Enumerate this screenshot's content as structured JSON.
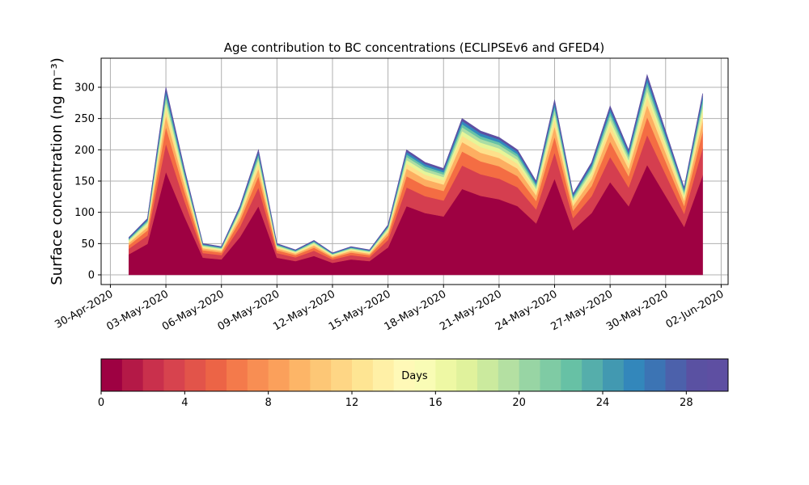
{
  "chart_data": {
    "type": "stacked-area",
    "title": "Age contribution to BC concentrations (ECLIPSEv6 and GFED4)",
    "y_label": "Surface concentration (ng m⁻³)",
    "grid": true,
    "x": [
      "2020-05-01",
      "2020-05-02",
      "2020-05-03",
      "2020-05-04",
      "2020-05-05",
      "2020-05-06",
      "2020-05-07",
      "2020-05-08",
      "2020-05-09",
      "2020-05-10",
      "2020-05-11",
      "2020-05-12",
      "2020-05-13",
      "2020-05-14",
      "2020-05-15",
      "2020-05-16",
      "2020-05-17",
      "2020-05-18",
      "2020-05-19",
      "2020-05-20",
      "2020-05-21",
      "2020-05-22",
      "2020-05-23",
      "2020-05-24",
      "2020-05-25",
      "2020-05-26",
      "2020-05-27",
      "2020-05-28",
      "2020-05-29",
      "2020-05-30",
      "2020-05-31",
      "2020-06-01"
    ],
    "xlim": [
      "2020-04-29T12:00",
      "2020-06-02T09:00"
    ],
    "xticks": [
      {
        "value": "2020-04-30",
        "label": "30-Apr-2020"
      },
      {
        "value": "2020-05-03",
        "label": "03-May-2020"
      },
      {
        "value": "2020-05-06",
        "label": "06-May-2020"
      },
      {
        "value": "2020-05-09",
        "label": "09-May-2020"
      },
      {
        "value": "2020-05-12",
        "label": "12-May-2020"
      },
      {
        "value": "2020-05-15",
        "label": "15-May-2020"
      },
      {
        "value": "2020-05-18",
        "label": "18-May-2020"
      },
      {
        "value": "2020-05-21",
        "label": "21-May-2020"
      },
      {
        "value": "2020-05-24",
        "label": "24-May-2020"
      },
      {
        "value": "2020-05-27",
        "label": "27-May-2020"
      },
      {
        "value": "2020-05-30",
        "label": "30-May-2020"
      },
      {
        "value": "2020-06-02",
        "label": "02-Jun-2020"
      }
    ],
    "ylim": [
      -15.5,
      346.5
    ],
    "yticks": [
      0,
      50,
      100,
      150,
      200,
      250,
      300
    ],
    "series": [
      {
        "color": "#9e0142",
        "values": [
          33,
          49.5,
          165,
          93.5,
          27.5,
          24.8,
          60.5,
          110,
          27.5,
          22,
          30.3,
          19.3,
          24.8,
          22,
          44,
          110,
          99,
          93.5,
          137.5,
          126.5,
          121,
          110,
          82.5,
          154,
          71.5,
          99,
          148.5,
          110,
          176,
          126.5,
          77,
          159.5
        ]
      },
      {
        "color": "#d53e4f",
        "values": [
          9,
          13.5,
          45,
          25.5,
          7.5,
          6.8,
          16.5,
          30,
          7.5,
          6,
          8.3,
          5.3,
          6.8,
          6,
          12,
          30,
          27,
          25.5,
          37.5,
          34.5,
          33,
          30,
          22.5,
          42,
          19.5,
          27,
          40.5,
          30,
          48,
          34.5,
          21,
          43.5
        ]
      },
      {
        "color": "#f46d43",
        "values": [
          5.4,
          8.1,
          27,
          15.3,
          4.5,
          4.1,
          9.9,
          18,
          4.5,
          3.6,
          5,
          3.2,
          4.1,
          3.6,
          7.2,
          18,
          16.2,
          15.3,
          22.5,
          20.7,
          19.8,
          18,
          13.5,
          25.2,
          11.7,
          16.2,
          24.3,
          18,
          28.8,
          20.7,
          12.6,
          26.1
        ]
      },
      {
        "color": "#fdae61",
        "values": [
          3.6,
          5.4,
          18,
          10.2,
          3,
          2.7,
          6.6,
          12,
          3,
          2.4,
          3.3,
          2.1,
          2.7,
          2.4,
          4.8,
          12,
          10.8,
          10.2,
          15,
          13.8,
          13.2,
          12,
          9,
          16.8,
          7.8,
          10.8,
          16.2,
          12,
          19.2,
          13.8,
          8.4,
          17.4
        ]
      },
      {
        "color": "#fee08b",
        "values": [
          2.4,
          3.6,
          12,
          6.8,
          2,
          1.8,
          4.4,
          8,
          2,
          1.6,
          2.2,
          1.4,
          1.8,
          1.6,
          3.2,
          8,
          7.2,
          6.8,
          10,
          9.2,
          8.8,
          8,
          6,
          11.2,
          5.2,
          7.2,
          10.8,
          8,
          12.8,
          9.2,
          5.6,
          11.6
        ]
      },
      {
        "color": "#e6f598",
        "values": [
          1.8,
          2.7,
          9,
          5.1,
          1.5,
          1.4,
          3.3,
          6,
          1.5,
          1.2,
          1.7,
          1.1,
          1.4,
          1.2,
          2.4,
          6,
          5.4,
          5.1,
          7.5,
          6.9,
          6.6,
          6,
          4.5,
          8.4,
          3.9,
          5.4,
          8.1,
          6,
          9.6,
          6.9,
          4.2,
          8.7
        ]
      },
      {
        "color": "#abdda4",
        "values": [
          1.5,
          2.3,
          7.5,
          4.3,
          1.3,
          1.1,
          2.8,
          5,
          1.3,
          1,
          1.4,
          0.9,
          1.1,
          1,
          2,
          5,
          4.5,
          4.3,
          6.3,
          5.8,
          5.5,
          5,
          3.8,
          7,
          3.3,
          4.5,
          6.8,
          5,
          8,
          5.8,
          3.5,
          7.3
        ]
      },
      {
        "color": "#66c2a5",
        "values": [
          1.2,
          1.8,
          6,
          3.4,
          1,
          0.9,
          2.2,
          4,
          1,
          0.8,
          1.1,
          0.7,
          0.9,
          0.8,
          1.6,
          4,
          3.6,
          3.4,
          5,
          4.6,
          4.4,
          4,
          3,
          5.6,
          2.6,
          3.6,
          5.4,
          4,
          6.4,
          4.6,
          2.8,
          5.8
        ]
      },
      {
        "color": "#3288bd",
        "values": [
          1.2,
          1.8,
          6,
          3.4,
          1,
          0.9,
          2.2,
          4,
          1,
          0.8,
          1.1,
          0.7,
          0.9,
          0.8,
          1.6,
          4,
          3.6,
          3.4,
          5,
          4.6,
          4.4,
          4,
          3,
          5.6,
          2.6,
          3.6,
          5.4,
          4,
          6.4,
          4.6,
          2.8,
          5.8
        ]
      },
      {
        "color": "#5e4fa2",
        "values": [
          0.9,
          1.4,
          4.5,
          2.6,
          0.8,
          0.7,
          1.7,
          3,
          0.8,
          0.6,
          0.8,
          0.5,
          0.7,
          0.6,
          1.2,
          3,
          2.7,
          2.6,
          3.8,
          3.5,
          3.3,
          3,
          2.3,
          4.2,
          2,
          2.7,
          4.1,
          3,
          4.8,
          3.5,
          2.1,
          4.4
        ]
      }
    ],
    "colorbar": {
      "label": "Days",
      "lim": [
        0,
        30
      ],
      "ticks": [
        0,
        4,
        8,
        12,
        16,
        20,
        24,
        28
      ],
      "colors": [
        "#9e0142",
        "#b41947",
        "#c9304c",
        "#d7434e",
        "#e2544a",
        "#ec6446",
        "#f47a4b",
        "#f88e53",
        "#fba05b",
        "#fdb567",
        "#fdc776",
        "#fed685",
        "#fee593",
        "#fff0a6",
        "#fff9b7",
        "#f9fcb5",
        "#eef8a4",
        "#e0f29c",
        "#cbea9e",
        "#b4e0a2",
        "#98d5a4",
        "#7fcba4",
        "#67c1a5",
        "#55aeab",
        "#4299b1",
        "#3387bb",
        "#3c74b4",
        "#4c61ab",
        "#5a51a2",
        "#5e4fa2"
      ]
    }
  }
}
